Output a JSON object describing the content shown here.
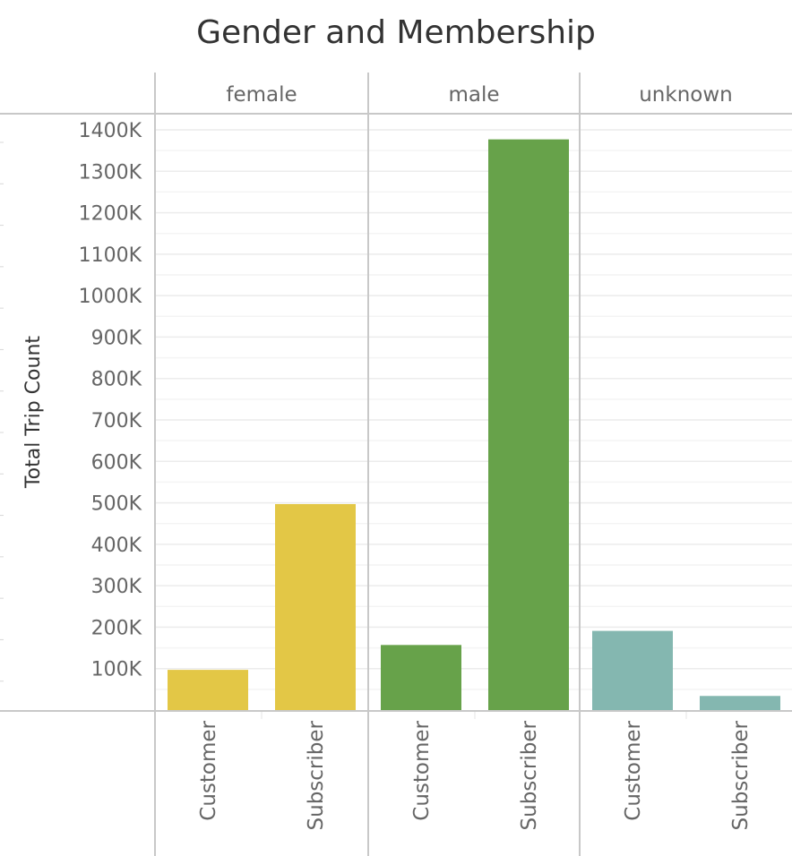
{
  "chart_data": {
    "type": "bar",
    "title": "Gender and Membership",
    "ylabel": "Total Trip Count",
    "xlabel": "",
    "ylim": [
      0,
      1400000
    ],
    "yticks": [
      100000,
      200000,
      300000,
      400000,
      500000,
      600000,
      700000,
      800000,
      900000,
      1000000,
      1100000,
      1200000,
      1300000,
      1400000
    ],
    "ytick_labels": [
      "100K",
      "200K",
      "300K",
      "400K",
      "500K",
      "600K",
      "700K",
      "800K",
      "900K",
      "1000K",
      "1100K",
      "1200K",
      "1300K",
      "1400K"
    ],
    "grid": true,
    "categories": [
      "Customer",
      "Subscriber"
    ],
    "panels": [
      {
        "name": "female",
        "color": "#E3C746",
        "values": [
          97000,
          497000
        ]
      },
      {
        "name": "male",
        "color": "#67A24A",
        "values": [
          157000,
          1377000
        ]
      },
      {
        "name": "unknown",
        "color": "#84B7B0",
        "values": [
          191000,
          34000
        ]
      }
    ]
  }
}
